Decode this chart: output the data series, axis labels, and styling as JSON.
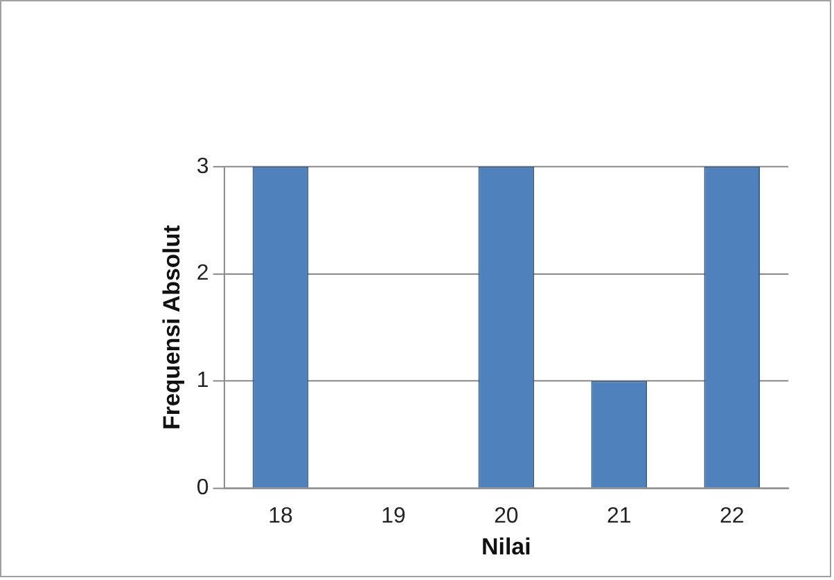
{
  "chart_data": {
    "type": "bar",
    "xlabel": "Nilai",
    "ylabel": "Frequensi Absolut",
    "categories": [
      "18",
      "19",
      "20",
      "21",
      "22"
    ],
    "values": [
      3,
      0,
      3,
      1,
      3
    ],
    "color": "#4f81bd",
    "ylim": [
      0,
      3
    ],
    "yticks": [
      0,
      1,
      2,
      3
    ],
    "grid": "y",
    "legend": false
  }
}
